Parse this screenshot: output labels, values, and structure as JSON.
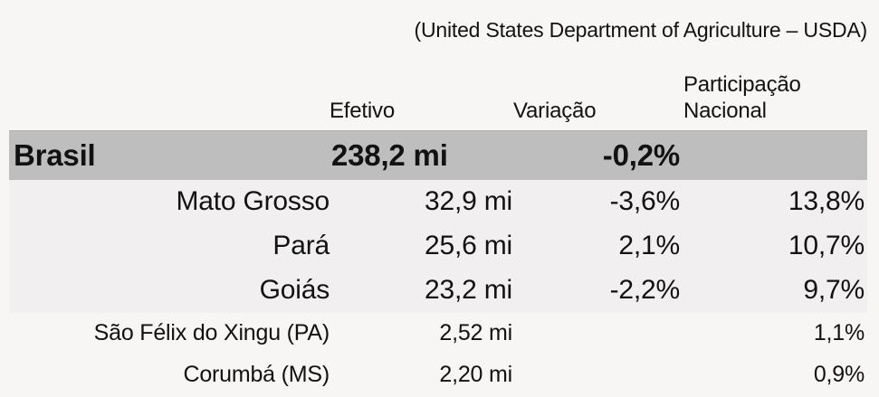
{
  "header": {
    "subtitle": "(United States Department of Agriculture – USDA)"
  },
  "table": {
    "columns": {
      "efetivo": "Efetivo",
      "variacao": "Variação",
      "participacao": "Participação\nNacional"
    },
    "rows": [
      {
        "name": "Brasil",
        "efetivo": "238,2 mi",
        "variacao": "-0,2%",
        "participacao": ""
      },
      {
        "name": "Mato Grosso",
        "efetivo": "32,9 mi",
        "variacao": "-3,6%",
        "participacao": "13,8%"
      },
      {
        "name": "Pará",
        "efetivo": "25,6 mi",
        "variacao": "2,1%",
        "participacao": "10,7%"
      },
      {
        "name": "Goiás",
        "efetivo": "23,2 mi",
        "variacao": "-2,2%",
        "participacao": "9,7%"
      },
      {
        "name": "São Félix do Xingu (PA)",
        "efetivo": "2,52 mi",
        "variacao": "",
        "participacao": "1,1%"
      },
      {
        "name": "Corumbá (MS)",
        "efetivo": "2,20 mi",
        "variacao": "",
        "participacao": "0,9%"
      }
    ],
    "colors": {
      "page_bg": "#f7f6f5",
      "brasil_row_bg": "#bfbebe",
      "states_section_bg": "#f1efef",
      "text": "#121212"
    }
  }
}
